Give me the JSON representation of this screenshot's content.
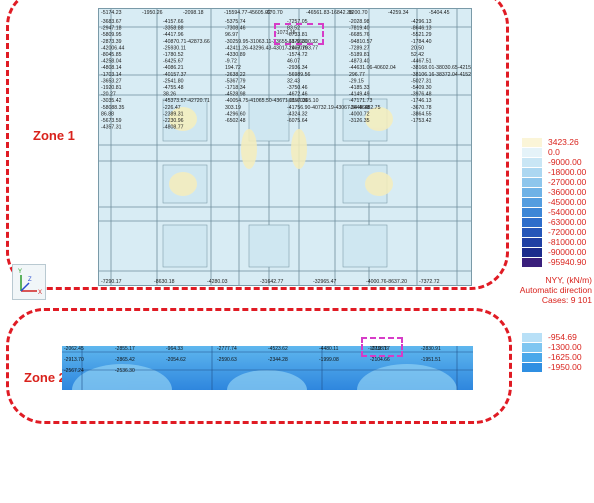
{
  "zone1": {
    "label": "Zone 1",
    "highlight_value": "-1073.15",
    "top_values": [
      "-5174.23",
      "-1950.26",
      "-2098.18",
      "-15594.77-45605.92",
      "-670.70",
      "-46561.83-16842.38",
      "-5200.70",
      "-4259.34",
      "-5404.45"
    ],
    "values": [
      "-3683.67",
      "-4157.66",
      "-5375.74",
      "-7257.05",
      "-2028.98",
      "-4296.13",
      "-2947.18",
      "-3358.88",
      "-7308.46",
      "83.52",
      "-7819.40",
      "-8646.13",
      "-5809.95",
      "-4417.96",
      "96.97",
      "-6733.81",
      "-6685.76",
      "-5521.29",
      "-2873.39",
      "-40870.71-42873.66",
      "-30259.95-31063.11-33655.61-56000.32",
      "-1870.31",
      "-94810.57",
      "-1784.40",
      "-42006.44",
      "-25930.11",
      "-42411.26-43296.43-43017.14-50793.77",
      "-2967.10",
      "-7289.27",
      "20.50",
      "-8045.85",
      "-1780.52",
      "-4330.89",
      "-1574.72",
      "-5189.81",
      "52.42",
      "-4258.04",
      "-6425.67",
      "-9.72",
      "46.07",
      "-4873.40",
      "-4467.51",
      "-4808.14",
      "-4086.21",
      "194.72",
      "-2936.34",
      "-44631.06-40602.04",
      "-38168.01-38030.65-42151.57-59208.29",
      "-1703.14",
      "-40157.37",
      "-2638.22",
      "-56989.56",
      "296.77",
      "-38106.16-38372.04-41524.75-44991.05",
      "-3653.27",
      "-2541.80",
      "-5367.79",
      "32.43",
      "-29.15",
      "-5027.31",
      "-1920.81",
      "-4755.48",
      "-1718.34",
      "-3750.46",
      "-4185.33",
      "-5409.30",
      "-20.27",
      "38.26",
      "-4528.98",
      "-4672.46",
      "-4149.49",
      "-3976.48",
      "-3035.42",
      "-45373.57-42720.71",
      "-40054.75-41065.50-43671.01-60365.10",
      "-1857.09",
      "-47171.73",
      "-1746.13",
      "-58088.35",
      "-226.47",
      "303.19",
      "-41756.90-40732.19-43067.54-46482.75",
      "-2648.18",
      "-3670.78",
      "86.88",
      "-2389.31",
      "-4296.60",
      "-4324.32",
      "-4000.72",
      "-3864.55",
      "-5673.59",
      "-2230.96",
      "-6502.48",
      "-6075.64",
      "-3126.35",
      "-1753.42",
      "-4357.31",
      "-4808.77"
    ],
    "bottom_values": [
      "-7290.17",
      "-8630.18",
      "-4280.03",
      "-31642.77",
      "-32965.47",
      "-4000.76-8637.20",
      "-7372.72"
    ]
  },
  "zone2": {
    "label": "Zone 2",
    "highlight_value": "-1010.76",
    "values": [
      "-2062.45",
      "-2855.17",
      "-964.33",
      "-2777.74",
      "-4523.62",
      "-4480.11",
      "-2738.17",
      "-2830.91",
      "-2913.70",
      "-2865.42",
      "-2054.62",
      "-2590.63",
      "-2344.28",
      "-1999.08",
      "-2104.66",
      "-1951.51",
      "-2567.24",
      "-2536.30"
    ]
  },
  "legend1": {
    "labels": [
      "3423.26",
      "0.0",
      "-9000.00",
      "-18000.00",
      "-27000.00",
      "-36000.00",
      "-45000.00",
      "-54000.00",
      "-63000.00",
      "-72000.00",
      "-81000.00",
      "-90000.00",
      "-95940.90"
    ],
    "colors": [
      "#fbf5d8",
      "#e5f3f9",
      "#c9e6f5",
      "#acd7f1",
      "#8ec6ec",
      "#6fb2e6",
      "#549ddf",
      "#3d86d6",
      "#2e6dca",
      "#2656b8",
      "#2040a3",
      "#1c2c8c",
      "#3a1f7c"
    ],
    "note_lines": [
      "NYY, (kN/m)",
      "Automatic direction",
      "Cases: 9 101"
    ]
  },
  "legend2": {
    "labels": [
      "-954.69",
      "-1300.00",
      "-1625.00",
      "-1950.00"
    ],
    "colors": [
      "#b8e0f7",
      "#7fc6f1",
      "#4aa8ea",
      "#2f8fe2"
    ]
  },
  "axes": {
    "x": "X",
    "y": "Y",
    "z": "Z"
  }
}
